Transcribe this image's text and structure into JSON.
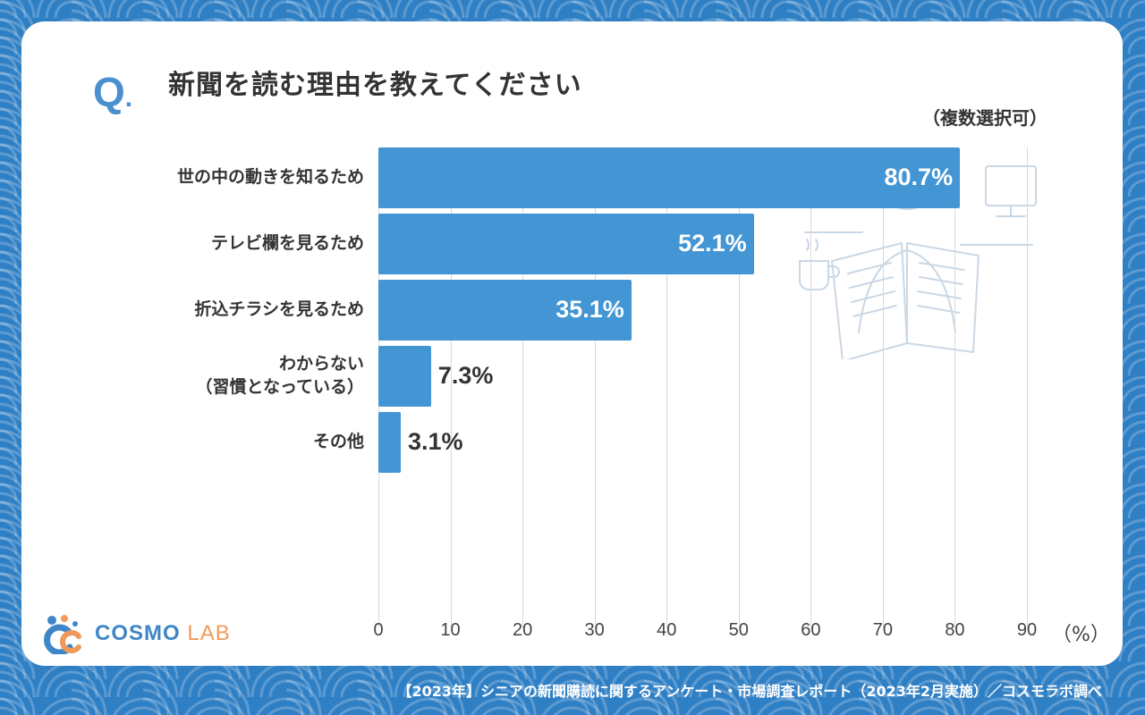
{
  "question_mark": "Q",
  "title": "新聞を読む理由を教えてください",
  "note": "（複数選択可）",
  "chart_data": {
    "type": "bar",
    "orientation": "horizontal",
    "title": "新聞を読む理由を教えてください",
    "categories": [
      {
        "lines": [
          "世の中の動きを知るため"
        ]
      },
      {
        "lines": [
          "テレビ欄を見るため"
        ]
      },
      {
        "lines": [
          "折込チラシを見るため"
        ]
      },
      {
        "lines": [
          "わからない",
          "（習慣となっている）"
        ]
      },
      {
        "lines": [
          "その他"
        ]
      }
    ],
    "values": [
      80.7,
      52.1,
      35.1,
      7.3,
      3.1
    ],
    "value_labels": [
      "80.7%",
      "52.1%",
      "35.1%",
      "7.3%",
      "3.1%"
    ],
    "xlim": [
      0,
      90
    ],
    "xticks": [
      "0",
      "10",
      "20",
      "30",
      "40",
      "50",
      "60",
      "70",
      "80",
      "90"
    ],
    "xlabel": "（%）",
    "ylabel": "",
    "grid": true,
    "bar_color": "#4395d3"
  },
  "logo": {
    "cosmo": "COSMO",
    "lab": "LAB"
  },
  "footer": "【2023年】シニアの新聞購読に関するアンケート・市場調査レポート（2023年2月実施）／コスモラボ調べ",
  "colors": {
    "background": "#2f7fc4",
    "accent": "#4a8fce",
    "bar": "#4395d3",
    "logo_orange": "#f09a5a"
  },
  "icons": [
    "reading-newspaper-illustration",
    "coffee-cup-icon",
    "monitor-icon",
    "cosmo-lab-logo-icon"
  ]
}
